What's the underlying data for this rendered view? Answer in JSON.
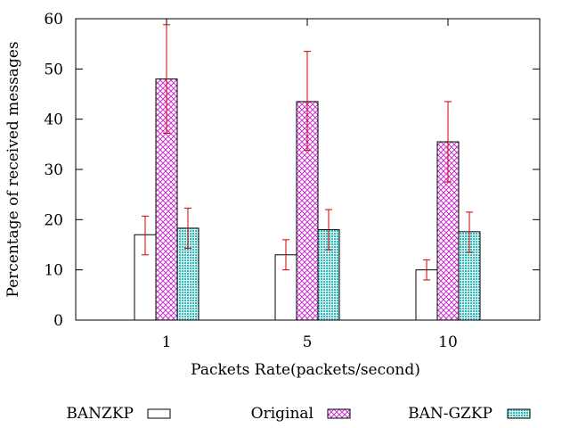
{
  "chart_data": {
    "type": "bar",
    "title": "",
    "xlabel": "Packets Rate(packets/second)",
    "ylabel": "Percentage of received messages",
    "categories": [
      "1",
      "5",
      "10"
    ],
    "ylim": [
      0,
      60
    ],
    "yticks": [
      0,
      10,
      20,
      30,
      40,
      50,
      60
    ],
    "grid": false,
    "legend_position": "bottom",
    "series": [
      {
        "name": "BANZKP",
        "values": [
          17,
          13,
          10
        ],
        "error_low": [
          13,
          10,
          8
        ],
        "error_high": [
          20.7,
          16,
          12
        ],
        "fill": "#ffffff",
        "pattern": "none"
      },
      {
        "name": "Original",
        "values": [
          48,
          43.5,
          35.5
        ],
        "error_low": [
          37.2,
          33.8,
          27.5
        ],
        "error_high": [
          58.8,
          53.5,
          43.5
        ],
        "fill": "#cc33cc",
        "pattern": "crosshatch"
      },
      {
        "name": "BAN-GZKP",
        "values": [
          18.3,
          18,
          17.6
        ],
        "error_low": [
          14.3,
          14,
          13.5
        ],
        "error_high": [
          22.3,
          22,
          21.5
        ],
        "fill": "#33bbbb",
        "pattern": "dots"
      }
    ],
    "colors": {
      "axis": "#000000",
      "error_bar": "#cc0000",
      "bar_outline": "#000000"
    }
  }
}
